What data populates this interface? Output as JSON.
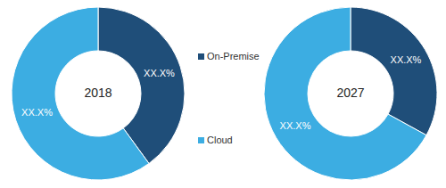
{
  "chart_data": {
    "type": "pie",
    "categories": [
      "On-Premise",
      "Cloud"
    ],
    "colors": [
      "#1f4e79",
      "#3cade2"
    ],
    "legend": "center",
    "data_labels": true,
    "series": [
      {
        "name": "2018",
        "values": [
          40,
          60
        ],
        "value_labels": [
          "XX.X%",
          "XX.X%"
        ]
      },
      {
        "name": "2027",
        "values": [
          33,
          67
        ],
        "value_labels": [
          "XX.X%",
          "XX.X%"
        ]
      }
    ]
  }
}
